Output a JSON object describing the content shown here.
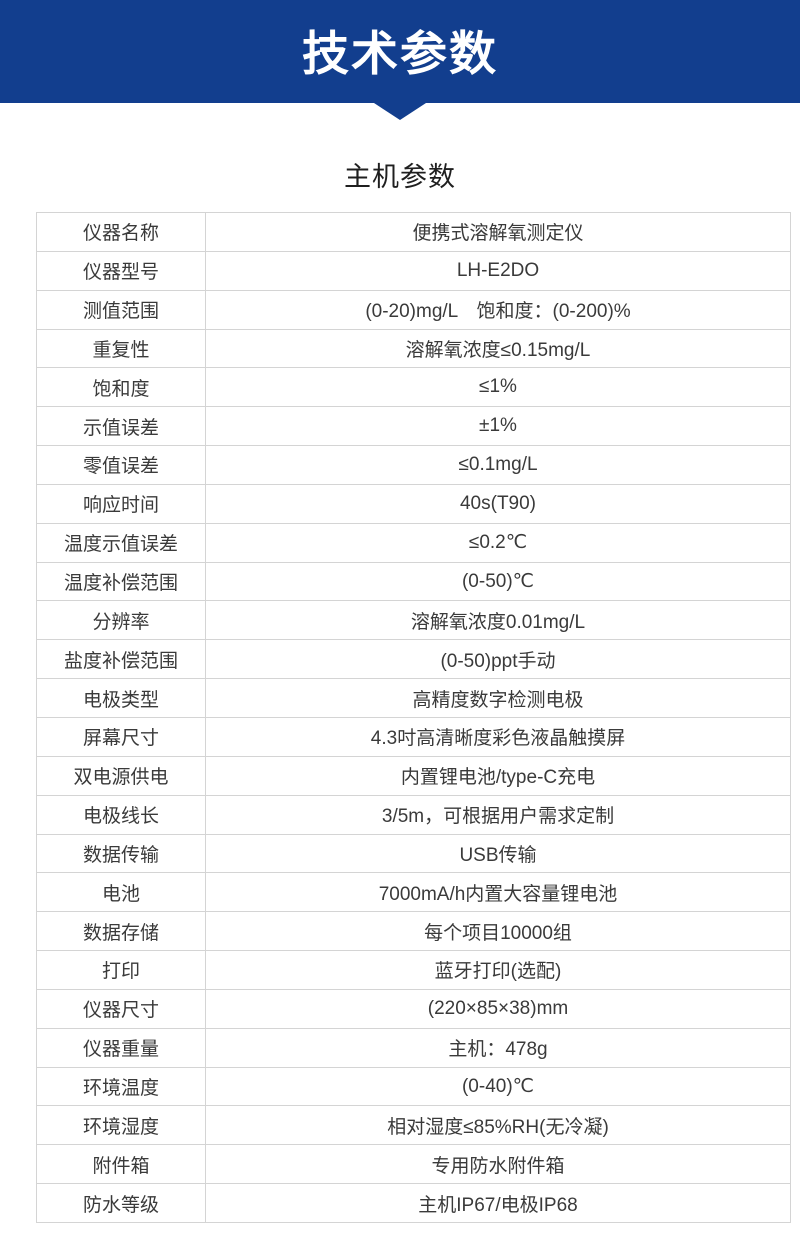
{
  "banner": {
    "title": "技术参数",
    "background_color": "#123e8e",
    "text_color": "#ffffff"
  },
  "section": {
    "title": "主机参数"
  },
  "spec_table": {
    "rows": [
      {
        "label": "仪器名称",
        "value": "便携式溶解氧测定仪"
      },
      {
        "label": "仪器型号",
        "value": "LH-E2DO"
      },
      {
        "label": "测值范围",
        "value": "(0-20)mg/L　饱和度：(0-200)%"
      },
      {
        "label": "重复性",
        "value": "溶解氧浓度≤0.15mg/L"
      },
      {
        "label": "饱和度",
        "value": "≤1%"
      },
      {
        "label": "示值误差",
        "value": "±1%"
      },
      {
        "label": "零值误差",
        "value": "≤0.1mg/L"
      },
      {
        "label": "响应时间",
        "value": "40s(T90)"
      },
      {
        "label": "温度示值误差",
        "value": "≤0.2℃"
      },
      {
        "label": "温度补偿范围",
        "value": "(0-50)℃"
      },
      {
        "label": "分辨率",
        "value": "溶解氧浓度0.01mg/L"
      },
      {
        "label": "盐度补偿范围",
        "value": "(0-50)ppt手动"
      },
      {
        "label": "电极类型",
        "value": "高精度数字检测电极"
      },
      {
        "label": "屏幕尺寸",
        "value": "4.3吋高清晰度彩色液晶触摸屏"
      },
      {
        "label": "双电源供电",
        "value": "内置锂电池/type-C充电"
      },
      {
        "label": "电极线长",
        "value": "3/5m，可根据用户需求定制"
      },
      {
        "label": "数据传输",
        "value": "USB传输"
      },
      {
        "label": "电池",
        "value": "7000mA/h内置大容量锂电池"
      },
      {
        "label": "数据存储",
        "value": "每个项目10000组"
      },
      {
        "label": "打印",
        "value": "蓝牙打印(选配)"
      },
      {
        "label": "仪器尺寸",
        "value": "(220×85×38)mm"
      },
      {
        "label": "仪器重量",
        "value": "主机：478g"
      },
      {
        "label": "环境温度",
        "value": "(0-40)℃"
      },
      {
        "label": "环境湿度",
        "value": "相对湿度≤85%RH(无冷凝)"
      },
      {
        "label": "附件箱",
        "value": "专用防水附件箱"
      },
      {
        "label": "防水等级",
        "value": "主机IP67/电极IP68"
      }
    ]
  }
}
